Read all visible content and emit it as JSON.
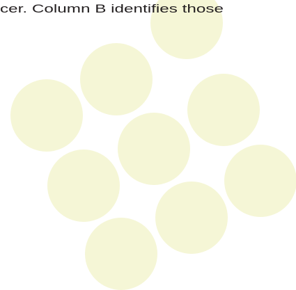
{
  "body": {
    "text": "cer. Column B identifies those"
  }
}
